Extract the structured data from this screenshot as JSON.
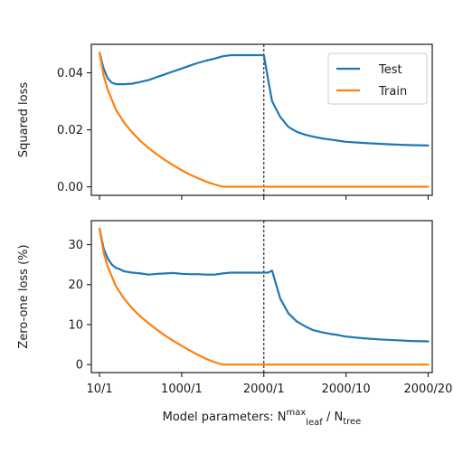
{
  "chart_data": [
    {
      "type": "line",
      "ylabel": "Squared loss",
      "ylim": [
        -0.003,
        0.05
      ],
      "yticks": [
        0.0,
        0.02,
        0.04
      ],
      "ytick_labels": [
        "0.00",
        "0.02",
        "0.04"
      ],
      "xlim": [
        -0.1,
        4.05
      ],
      "xticks": [
        0,
        1,
        2,
        3,
        4
      ],
      "xtick_labels": [
        "10/1",
        "1000/1",
        "2000/1",
        "2000/10",
        "2000/20"
      ],
      "show_xtick_labels": false,
      "vline_x": 2,
      "legend": {
        "position": "top-right",
        "entries": [
          "Test",
          "Train"
        ]
      },
      "series": [
        {
          "name": "Test",
          "color": "#1f77b4",
          "x": [
            0,
            0.05,
            0.1,
            0.15,
            0.2,
            0.25,
            0.3,
            0.4,
            0.5,
            0.6,
            0.7,
            0.8,
            0.9,
            1.0,
            1.1,
            1.2,
            1.3,
            1.4,
            1.5,
            1.6,
            1.7,
            1.8,
            1.9,
            2.0,
            2.05,
            2.1,
            2.2,
            2.3,
            2.4,
            2.5,
            2.6,
            2.7,
            2.8,
            2.9,
            3.0,
            3.2,
            3.4,
            3.6,
            3.8,
            4.0
          ],
          "y": [
            0.047,
            0.0415,
            0.038,
            0.0365,
            0.036,
            0.036,
            0.036,
            0.0362,
            0.0368,
            0.0375,
            0.0385,
            0.0395,
            0.0405,
            0.0415,
            0.0425,
            0.0435,
            0.0443,
            0.045,
            0.0458,
            0.0462,
            0.0462,
            0.0462,
            0.0462,
            0.0462,
            0.038,
            0.03,
            0.0245,
            0.021,
            0.0193,
            0.0183,
            0.0176,
            0.017,
            0.0166,
            0.0162,
            0.0158,
            0.0154,
            0.0151,
            0.0148,
            0.0146,
            0.0145
          ]
        },
        {
          "name": "Train",
          "color": "#ff7f0e",
          "x": [
            0,
            0.05,
            0.1,
            0.2,
            0.3,
            0.4,
            0.5,
            0.6,
            0.7,
            0.8,
            0.9,
            1.0,
            1.1,
            1.2,
            1.3,
            1.4,
            1.5,
            1.6,
            1.7,
            1.8,
            1.9,
            2.0,
            2.5,
            3.0,
            3.5,
            4.0
          ],
          "y": [
            0.047,
            0.039,
            0.034,
            0.027,
            0.0225,
            0.019,
            0.016,
            0.0135,
            0.0113,
            0.0093,
            0.0075,
            0.0058,
            0.0043,
            0.003,
            0.0018,
            0.0008,
            0.0,
            0.0,
            0.0,
            0.0,
            0.0,
            0.0,
            0.0,
            0.0,
            0.0,
            0.0
          ]
        }
      ]
    },
    {
      "type": "line",
      "ylabel": "Zero-one loss (%)",
      "xlabel": "Model parameters: N",
      "xlabel_sub1": "leaf",
      "xlabel_sup1": "max",
      "xlabel_mid": "  /  N",
      "xlabel_sub2": "tree",
      "ylim": [
        -2,
        36
      ],
      "yticks": [
        0,
        10,
        20,
        30
      ],
      "ytick_labels": [
        "0",
        "10",
        "20",
        "30"
      ],
      "xlim": [
        -0.1,
        4.05
      ],
      "xticks": [
        0,
        1,
        2,
        3,
        4
      ],
      "xtick_labels": [
        "10/1",
        "1000/1",
        "2000/1",
        "2000/10",
        "2000/20"
      ],
      "show_xtick_labels": true,
      "vline_x": 2,
      "series": [
        {
          "name": "Test",
          "color": "#1f77b4",
          "x": [
            0,
            0.05,
            0.1,
            0.15,
            0.2,
            0.25,
            0.3,
            0.4,
            0.5,
            0.6,
            0.7,
            0.8,
            0.9,
            1.0,
            1.1,
            1.2,
            1.3,
            1.4,
            1.5,
            1.6,
            1.7,
            1.8,
            1.9,
            2.0,
            2.05,
            2.1,
            2.2,
            2.3,
            2.4,
            2.5,
            2.6,
            2.7,
            2.8,
            2.9,
            3.0,
            3.2,
            3.4,
            3.6,
            3.8,
            4.0
          ],
          "y": [
            34,
            29,
            26.5,
            25,
            24.2,
            23.8,
            23.3,
            23.0,
            22.8,
            22.5,
            22.7,
            22.8,
            22.9,
            22.7,
            22.6,
            22.6,
            22.5,
            22.5,
            22.8,
            23.0,
            23.0,
            23.0,
            23.0,
            23.0,
            23.0,
            23.5,
            16.5,
            12.8,
            10.8,
            9.6,
            8.6,
            8.1,
            7.7,
            7.4,
            7.0,
            6.6,
            6.3,
            6.1,
            5.9,
            5.8
          ]
        },
        {
          "name": "Train",
          "color": "#ff7f0e",
          "x": [
            0,
            0.05,
            0.1,
            0.2,
            0.3,
            0.4,
            0.5,
            0.6,
            0.7,
            0.8,
            0.9,
            1.0,
            1.1,
            1.2,
            1.3,
            1.4,
            1.5,
            1.6,
            1.7,
            1.8,
            1.9,
            2.0,
            2.5,
            3.0,
            3.5,
            4.0
          ],
          "y": [
            34,
            28,
            24.5,
            19.5,
            16.5,
            14,
            12,
            10.3,
            8.7,
            7.2,
            5.9,
            4.7,
            3.5,
            2.4,
            1.4,
            0.6,
            0.0,
            0.0,
            0.0,
            0.0,
            0.0,
            0.0,
            0.0,
            0.0,
            0.0,
            0.0
          ]
        }
      ]
    }
  ]
}
